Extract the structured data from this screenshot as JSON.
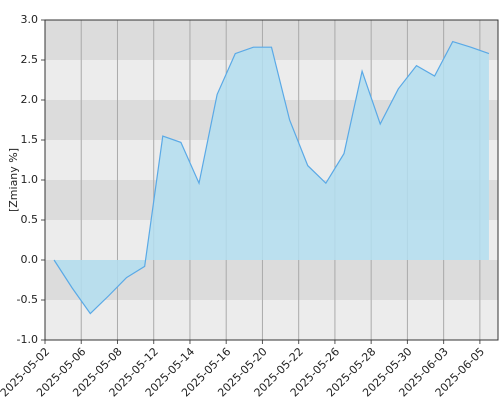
{
  "chart_data": {
    "type": "area",
    "y_label": "[Zmiany %]",
    "categories": [
      "2025-05-02",
      null,
      "2025-05-06",
      null,
      "2025-05-08",
      null,
      "2025-05-12",
      null,
      "2025-05-14",
      null,
      "2025-05-16",
      null,
      "2025-05-20",
      null,
      "2025-05-22",
      null,
      "2025-05-26",
      null,
      "2025-05-28",
      null,
      "2025-05-30",
      null,
      "2025-06-03",
      null,
      "2025-06-05"
    ],
    "values": [
      0.0,
      -0.35,
      -0.67,
      -0.45,
      -0.22,
      -0.08,
      1.55,
      1.47,
      0.96,
      2.07,
      2.58,
      2.66,
      2.66,
      1.75,
      1.18,
      0.96,
      1.33,
      2.36,
      1.7,
      2.14,
      2.43,
      2.3,
      2.73,
      2.66,
      2.58
    ],
    "color": "#5aa9e6",
    "fill_color": "#b3def0",
    "ylim": [
      -1,
      3
    ],
    "yticks": [
      {
        "value": -1,
        "label": "-1.0"
      },
      {
        "value": -0.5,
        "label": "-0.5"
      },
      {
        "value": 0,
        "label": "0.0"
      },
      {
        "value": 0.5,
        "label": "0.5"
      },
      {
        "value": 1,
        "label": "1.0"
      },
      {
        "value": 1.5,
        "label": "1.5"
      },
      {
        "value": 2,
        "label": "2.0"
      },
      {
        "value": 2.5,
        "label": "2.5"
      },
      {
        "value": 3,
        "label": "3.0"
      }
    ],
    "grid": true
  }
}
